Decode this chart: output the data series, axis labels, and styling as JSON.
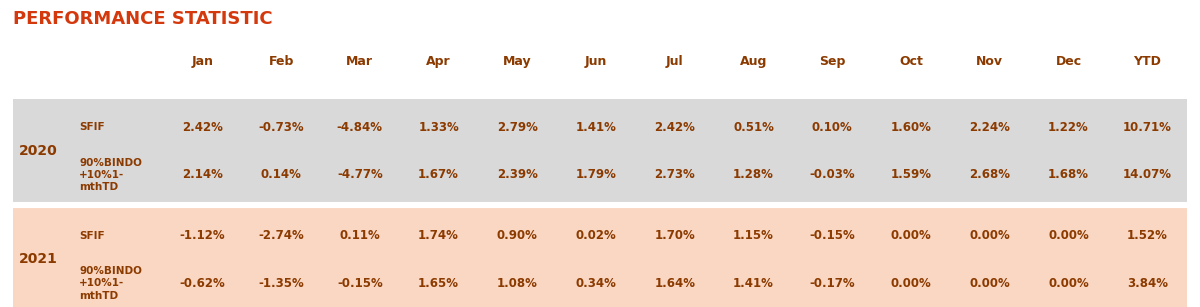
{
  "title": "PERFORMANCE STATISTIC",
  "title_color": "#D4380D",
  "columns": [
    "Jan",
    "Feb",
    "Mar",
    "Apr",
    "May",
    "Jun",
    "Jul",
    "Aug",
    "Sep",
    "Oct",
    "Nov",
    "Dec",
    "YTD"
  ],
  "rows": [
    {
      "year": "2020",
      "bg_color": "#D9D9D9",
      "sub_rows": [
        {
          "label": "SFIF",
          "values": [
            "2.42%",
            "-0.73%",
            "-4.84%",
            "1.33%",
            "2.79%",
            "1.41%",
            "2.42%",
            "0.51%",
            "0.10%",
            "1.60%",
            "2.24%",
            "1.22%",
            "10.71%"
          ]
        },
        {
          "label": "90%BINDO\n+10%1-\nmthTD",
          "values": [
            "2.14%",
            "0.14%",
            "-4.77%",
            "1.67%",
            "2.39%",
            "1.79%",
            "2.73%",
            "1.28%",
            "-0.03%",
            "1.59%",
            "2.68%",
            "1.68%",
            "14.07%"
          ]
        }
      ]
    },
    {
      "year": "2021",
      "bg_color": "#FAD7C2",
      "sub_rows": [
        {
          "label": "SFIF",
          "values": [
            "-1.12%",
            "-2.74%",
            "0.11%",
            "1.74%",
            "0.90%",
            "0.02%",
            "1.70%",
            "1.15%",
            "-0.15%",
            "0.00%",
            "0.00%",
            "0.00%",
            "1.52%"
          ]
        },
        {
          "label": "90%BINDO\n+10%1-\nmthTD",
          "values": [
            "-0.62%",
            "-1.35%",
            "-0.15%",
            "1.65%",
            "1.08%",
            "0.34%",
            "1.64%",
            "1.41%",
            "-0.17%",
            "0.00%",
            "0.00%",
            "0.00%",
            "3.84%"
          ]
        }
      ]
    }
  ],
  "text_color": "#8B3A00",
  "header_fontsize": 9,
  "cell_fontsize": 8.5,
  "year_fontsize": 10,
  "label_fontsize": 7.5
}
